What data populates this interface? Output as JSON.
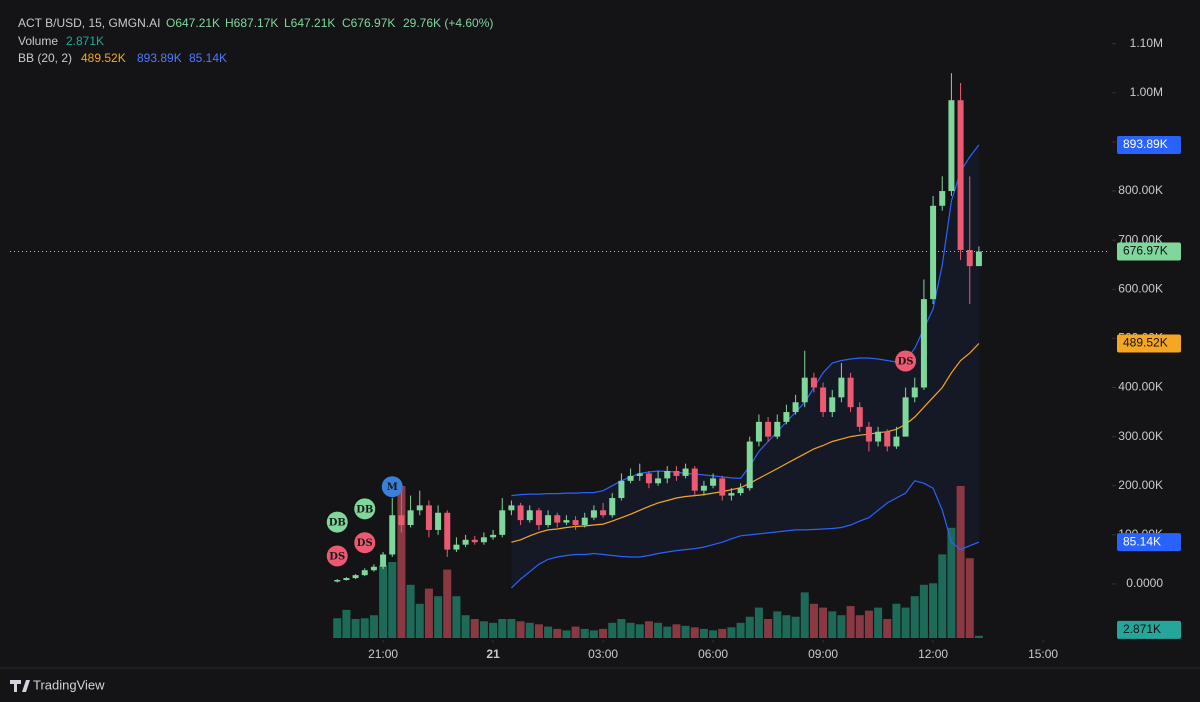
{
  "chart_data": {
    "type": "candlestick",
    "legend": {
      "symbol": "ACT B/USD, 15, GMGN.AI",
      "open": "O647.21K",
      "high": "H687.17K",
      "low": "L647.21K",
      "close": "C676.97K",
      "change": "29.76K (+4.60%)",
      "volume_label": "Volume",
      "volume_value": "2.871K",
      "bb_label": "BB (20, 2)",
      "bb_middle": "489.52K",
      "bb_upper": "893.89K",
      "bb_lower": "85.14K"
    },
    "brand": "TradingView",
    "x": [
      0,
      1,
      2,
      3,
      4,
      5,
      6,
      7,
      8,
      9,
      10,
      11,
      12,
      13,
      14,
      15,
      16,
      17,
      18,
      19,
      20,
      21,
      22,
      23,
      24,
      25,
      26,
      27,
      28,
      29,
      30,
      31,
      32,
      33,
      34,
      35,
      36,
      37,
      38,
      39,
      40,
      41,
      42,
      43,
      44,
      45,
      46,
      47,
      48,
      49,
      50,
      51,
      52,
      53,
      54,
      55,
      56,
      57,
      58,
      59,
      60,
      61,
      62,
      63,
      64,
      65,
      66,
      67,
      68,
      69,
      70
    ],
    "open": [
      5,
      8,
      12,
      18,
      28,
      35,
      60,
      140,
      120,
      150,
      160,
      110,
      145,
      70,
      80,
      90,
      85,
      95,
      100,
      150,
      160,
      130,
      150,
      120,
      140,
      125,
      130,
      120,
      135,
      150,
      140,
      175,
      210,
      220,
      225,
      205,
      215,
      230,
      220,
      235,
      190,
      200,
      215,
      180,
      185,
      195,
      290,
      330,
      300,
      330,
      350,
      370,
      420,
      400,
      350,
      380,
      420,
      360,
      320,
      290,
      310,
      280,
      300,
      380,
      400,
      580,
      770,
      800,
      985,
      680,
      647.21
    ],
    "high": [
      10,
      14,
      20,
      32,
      40,
      65,
      175,
      190,
      180,
      190,
      170,
      160,
      150,
      95,
      100,
      98,
      105,
      110,
      175,
      170,
      165,
      160,
      155,
      150,
      145,
      140,
      138,
      145,
      160,
      165,
      185,
      225,
      235,
      245,
      230,
      230,
      240,
      240,
      245,
      240,
      210,
      225,
      220,
      195,
      205,
      300,
      345,
      340,
      345,
      365,
      385,
      475,
      430,
      410,
      395,
      450,
      430,
      370,
      330,
      320,
      315,
      320,
      400,
      420,
      620,
      790,
      830,
      1040,
      1020,
      830,
      687.17
    ],
    "low": [
      3,
      7,
      10,
      16,
      25,
      30,
      55,
      105,
      115,
      140,
      95,
      100,
      55,
      65,
      75,
      80,
      80,
      90,
      95,
      140,
      120,
      125,
      110,
      115,
      115,
      120,
      110,
      115,
      130,
      135,
      135,
      170,
      205,
      210,
      195,
      200,
      205,
      210,
      215,
      180,
      180,
      195,
      170,
      170,
      180,
      190,
      280,
      290,
      295,
      325,
      345,
      360,
      390,
      340,
      340,
      370,
      350,
      310,
      270,
      280,
      270,
      275,
      300,
      370,
      395,
      570,
      760,
      790,
      660,
      570,
      647.21
    ],
    "close": [
      8,
      12,
      18,
      28,
      35,
      60,
      140,
      120,
      150,
      160,
      110,
      145,
      70,
      80,
      90,
      85,
      95,
      100,
      150,
      160,
      130,
      150,
      120,
      140,
      125,
      130,
      120,
      135,
      150,
      140,
      175,
      210,
      220,
      225,
      205,
      215,
      230,
      220,
      235,
      190,
      200,
      215,
      180,
      185,
      195,
      290,
      330,
      300,
      330,
      350,
      370,
      420,
      400,
      350,
      380,
      420,
      360,
      320,
      290,
      310,
      280,
      300,
      380,
      400,
      580,
      770,
      800,
      985,
      680,
      647.21,
      676.97
    ],
    "volume": [
      26,
      37,
      25,
      26,
      30,
      96,
      100,
      200,
      70,
      45,
      65,
      55,
      90,
      55,
      30,
      25,
      22,
      20,
      25,
      25,
      22,
      20,
      18,
      15,
      12,
      10,
      15,
      12,
      10,
      12,
      20,
      25,
      20,
      18,
      22,
      20,
      15,
      18,
      16,
      14,
      12,
      10,
      12,
      14,
      20,
      28,
      40,
      25,
      35,
      30,
      28,
      60,
      45,
      40,
      35,
      30,
      42,
      30,
      36,
      40,
      25,
      45,
      40,
      55,
      70,
      72,
      110,
      145,
      200,
      105,
      2.871
    ],
    "bb_upper": [
      null,
      null,
      null,
      null,
      null,
      null,
      null,
      null,
      null,
      null,
      null,
      null,
      null,
      null,
      null,
      null,
      null,
      null,
      null,
      180,
      182,
      183,
      183,
      184,
      184,
      185,
      185,
      186,
      186,
      190,
      200,
      210,
      218,
      225,
      228,
      230,
      229,
      228,
      225,
      224,
      222,
      220,
      218,
      216,
      215,
      240,
      270,
      290,
      310,
      330,
      350,
      370,
      400,
      430,
      450,
      455,
      458,
      460,
      460,
      458,
      455,
      452,
      455,
      480,
      520,
      560,
      650,
      780,
      840,
      870,
      893.89
    ],
    "bb_middle": [
      null,
      null,
      null,
      null,
      null,
      null,
      null,
      null,
      null,
      null,
      null,
      null,
      null,
      null,
      null,
      null,
      null,
      null,
      null,
      85,
      90,
      98,
      105,
      110,
      112,
      115,
      117,
      118,
      120,
      122,
      128,
      135,
      142,
      150,
      158,
      165,
      170,
      175,
      178,
      180,
      182,
      185,
      188,
      192,
      196,
      205,
      215,
      225,
      235,
      245,
      255,
      265,
      275,
      282,
      290,
      295,
      300,
      303,
      305,
      308,
      310,
      315,
      325,
      340,
      360,
      380,
      400,
      430,
      455,
      470,
      489.52
    ],
    "bb_lower": [
      null,
      null,
      null,
      null,
      null,
      null,
      null,
      null,
      null,
      null,
      null,
      null,
      null,
      null,
      null,
      null,
      null,
      null,
      null,
      -8,
      10,
      25,
      40,
      50,
      55,
      58,
      60,
      60,
      62,
      60,
      58,
      56,
      55,
      55,
      58,
      62,
      65,
      68,
      70,
      72,
      75,
      80,
      85,
      92,
      98,
      100,
      102,
      104,
      106,
      108,
      110,
      110,
      111,
      112,
      113,
      115,
      120,
      128,
      135,
      150,
      165,
      175,
      185,
      210,
      205,
      195,
      150,
      85,
      70,
      78,
      85.14
    ],
    "up_color": "#7fd79c",
    "down_color": "#ec5a72",
    "vol_up_color": "#1d6a59",
    "vol_down_color": "#8a3942",
    "bb_upper_color": "#2962ff",
    "bb_middle_color": "#f5a623",
    "bb_lower_color": "#2962ff",
    "markers": [
      {
        "text": "DS",
        "x": 0,
        "y": 57,
        "color": "#ec5a72"
      },
      {
        "text": "DB",
        "x": 0,
        "y": 126,
        "color": "#7fd79c"
      },
      {
        "text": "DS",
        "x": 3,
        "y": 84,
        "color": "#ec5a72"
      },
      {
        "text": "DB",
        "x": 3,
        "y": 153,
        "color": "#7fd79c"
      },
      {
        "text": "M",
        "x": 6,
        "y": 198,
        "color": "#3a80d9"
      },
      {
        "text": "DS",
        "x": 62,
        "y": 454,
        "color": "#ec5a72"
      }
    ],
    "xlim": [
      -35.7,
      84.3
    ],
    "xticks": [
      {
        "value": 5,
        "label": "21:00"
      },
      {
        "value": 17,
        "label": "21"
      },
      {
        "value": 29,
        "label": "03:00"
      },
      {
        "value": 41,
        "label": "06:00"
      },
      {
        "value": 53,
        "label": "09:00"
      },
      {
        "value": 65,
        "label": "12:00"
      },
      {
        "value": 77,
        "label": "15:00"
      }
    ],
    "ylim": [
      -110,
      1189
    ],
    "yticks": [
      {
        "value": 0,
        "label": "0.0000"
      },
      {
        "value": 100,
        "label": "100.00K"
      },
      {
        "value": 200,
        "label": "200.00K"
      },
      {
        "value": 300,
        "label": "300.00K"
      },
      {
        "value": 400,
        "label": "400.00K"
      },
      {
        "value": 500,
        "label": "500.00K"
      },
      {
        "value": 600,
        "label": "600.00K"
      },
      {
        "value": 700,
        "label": "700.00K"
      },
      {
        "value": 800,
        "label": "800.00K"
      },
      {
        "value": 900,
        "label": "900.00K"
      },
      {
        "value": 1000,
        "label": "1.00M"
      },
      {
        "value": 1100,
        "label": "1.10M"
      }
    ],
    "grid": false
  }
}
